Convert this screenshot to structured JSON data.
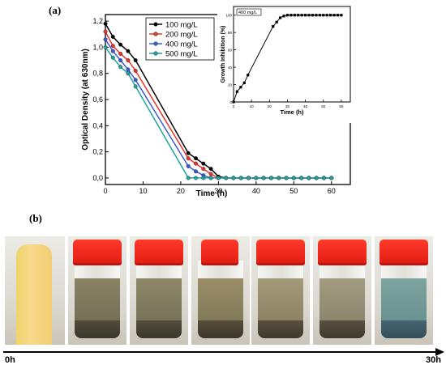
{
  "figure": {
    "panel_a_label": "(a)",
    "panel_b_label": "(b)",
    "timeline": {
      "start": "0h",
      "end": "30h"
    }
  },
  "chart_data": [
    {
      "type": "line",
      "title": "",
      "xlabel": "Time (h)",
      "ylabel": "Optical Density (at 630nm)",
      "xlim": [
        0,
        65
      ],
      "ylim": [
        -0.05,
        1.25
      ],
      "xticks": [
        0,
        10,
        20,
        30,
        40,
        50,
        60
      ],
      "yticks": [
        0.0,
        0.2,
        0.4,
        0.6,
        0.8,
        1.0,
        1.2
      ],
      "ytick_labels": [
        "0,0",
        "0,2",
        "0,4",
        "0,6",
        "0,8",
        "1,0",
        "1,2"
      ],
      "legend_position": "top-right",
      "grid": false,
      "series": [
        {
          "name": "100 mg/L",
          "color": "#000000",
          "x": [
            0,
            2,
            4,
            6,
            8,
            22,
            24,
            26,
            28,
            30,
            32,
            34,
            36,
            38,
            40,
            42,
            44,
            46,
            48,
            50,
            52,
            54,
            56,
            58,
            60
          ],
          "y": [
            1.18,
            1.08,
            1.02,
            0.97,
            0.9,
            0.19,
            0.15,
            0.11,
            0.07,
            0.01,
            0.0,
            0.0,
            0.0,
            0.0,
            0.0,
            0.0,
            0.0,
            0.0,
            0.0,
            0.0,
            0.0,
            0.0,
            0.0,
            0.0,
            0.0
          ]
        },
        {
          "name": "200 mg/L",
          "color": "#e8332b",
          "x": [
            0,
            2,
            4,
            6,
            8,
            22,
            24,
            26,
            28,
            30,
            32,
            34,
            36,
            38,
            40,
            42,
            44,
            46,
            48,
            50,
            52,
            54,
            56,
            58,
            60
          ],
          "y": [
            1.12,
            1.01,
            0.95,
            0.9,
            0.82,
            0.15,
            0.11,
            0.07,
            0.03,
            0.0,
            0.0,
            0.0,
            0.0,
            0.0,
            0.0,
            0.0,
            0.0,
            0.0,
            0.0,
            0.0,
            0.0,
            0.0,
            0.0,
            0.0,
            0.0
          ]
        },
        {
          "name": "400 mg/L",
          "color": "#3c5bd6",
          "x": [
            0,
            2,
            4,
            6,
            8,
            22,
            24,
            26,
            28,
            30,
            32,
            34,
            36,
            38,
            40,
            42,
            44,
            46,
            48,
            50,
            52,
            54,
            56,
            58,
            60
          ],
          "y": [
            1.06,
            0.97,
            0.9,
            0.83,
            0.75,
            0.09,
            0.05,
            0.02,
            0.0,
            0.0,
            0.0,
            0.0,
            0.0,
            0.0,
            0.0,
            0.0,
            0.0,
            0.0,
            0.0,
            0.0,
            0.0,
            0.0,
            0.0,
            0.0,
            0.0
          ]
        },
        {
          "name": "500 mg/L",
          "color": "#20a39e",
          "x": [
            0,
            2,
            4,
            6,
            8,
            22,
            24,
            26,
            28,
            30,
            32,
            34,
            36,
            38,
            40,
            42,
            44,
            46,
            48,
            50,
            52,
            54,
            56,
            58,
            60
          ],
          "y": [
            1.0,
            0.92,
            0.85,
            0.8,
            0.7,
            0.0,
            0.0,
            0.0,
            0.0,
            0.0,
            0.0,
            0.0,
            0.0,
            0.0,
            0.0,
            0.0,
            0.0,
            0.0,
            0.0,
            0.0,
            0.0,
            0.0,
            0.0,
            0.0,
            0.0
          ]
        }
      ]
    },
    {
      "type": "line",
      "title": "",
      "xlabel": "Time (h)",
      "ylabel": "Growth Inhibition (%)",
      "xlim": [
        0,
        65
      ],
      "ylim": [
        0,
        110
      ],
      "xticks": [
        0,
        10,
        20,
        30,
        40,
        50,
        60
      ],
      "yticks": [
        0,
        20,
        40,
        60,
        80,
        100
      ],
      "legend_position": "top-left",
      "grid": false,
      "series": [
        {
          "name": "400 mg/L",
          "color": "#000000",
          "x": [
            0,
            2,
            4,
            6,
            8,
            22,
            24,
            26,
            28,
            30,
            32,
            34,
            36,
            38,
            40,
            42,
            44,
            46,
            48,
            50,
            52,
            54,
            56,
            58,
            60
          ],
          "y": [
            0,
            12,
            17,
            22,
            31,
            87,
            92,
            97,
            99,
            100,
            100,
            100,
            100,
            100,
            100,
            100,
            100,
            100,
            100,
            100,
            100,
            100,
            100,
            100,
            100
          ]
        }
      ]
    }
  ]
}
